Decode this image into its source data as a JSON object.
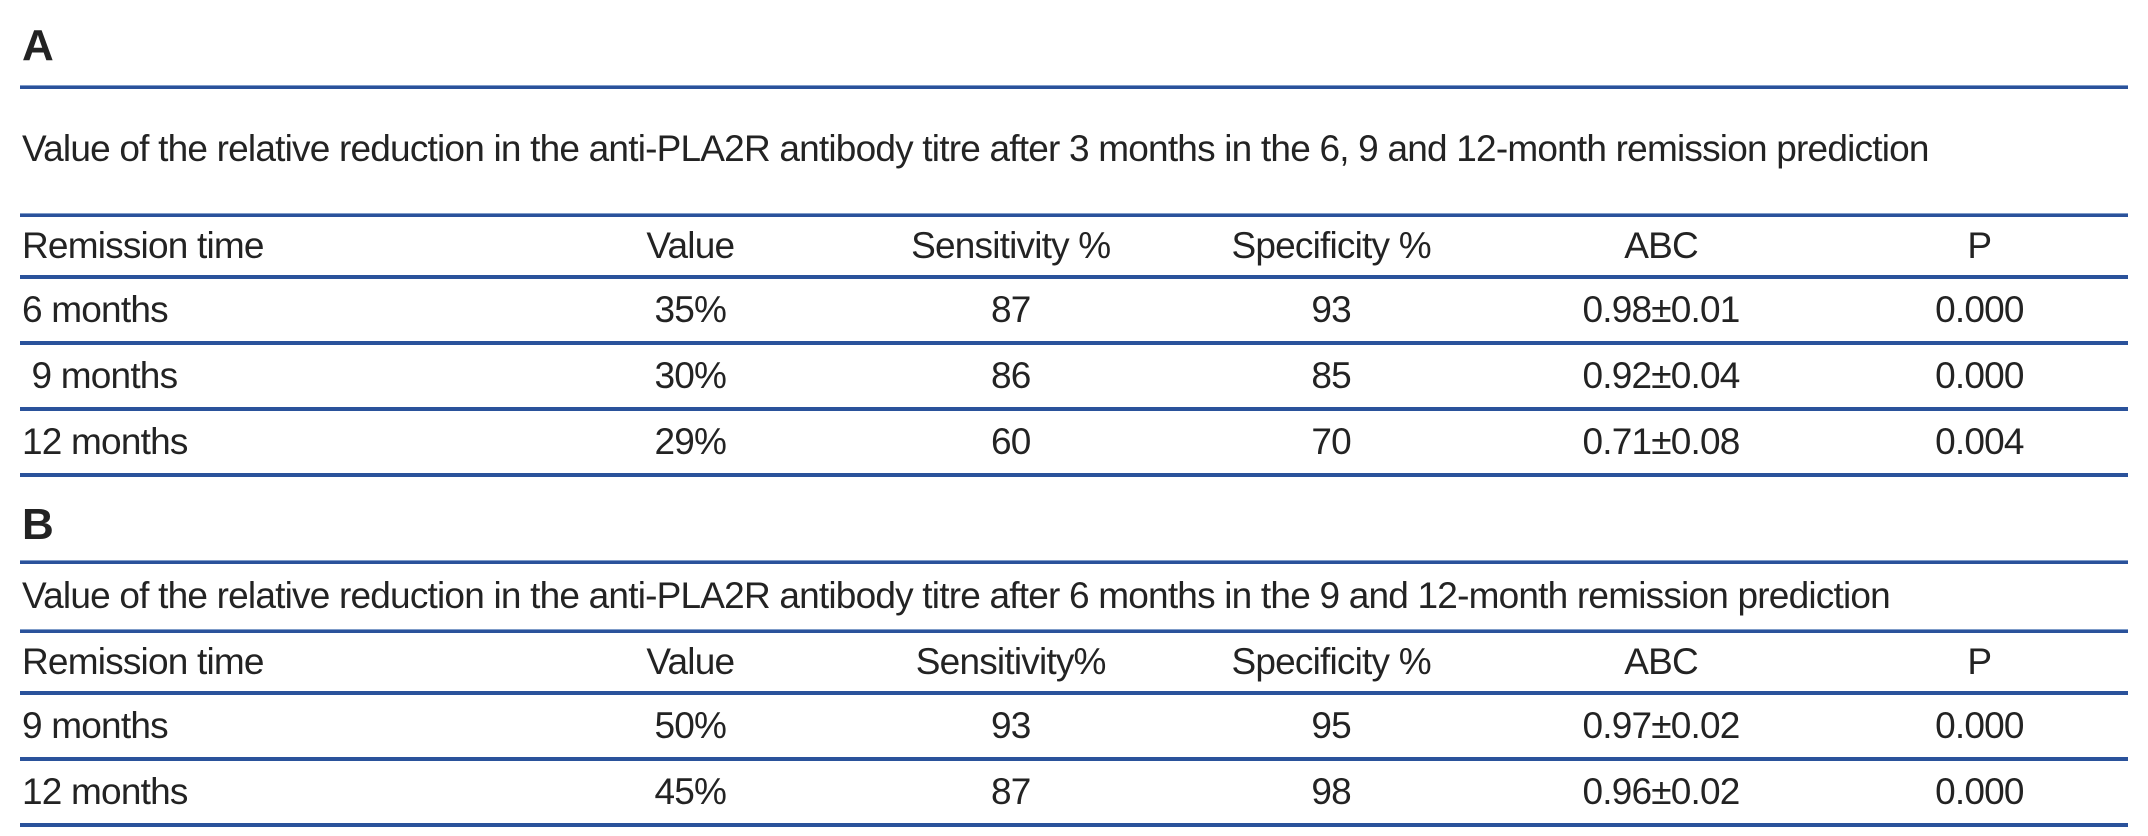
{
  "colors": {
    "rule_line": "#2a529b",
    "text": "#232323",
    "background": "#ffffff"
  },
  "sections": [
    {
      "label": "A",
      "title": "Value of the relative reduction in the anti-PLA2R antibody titre after 3 months in the 6, 9 and 12-month remission prediction",
      "table": {
        "headers": [
          "Remission time",
          "Value",
          "Sensitivity %",
          "Specificity %",
          "ABC",
          "P"
        ],
        "rows": [
          [
            "6 months",
            "35%",
            "87",
            "93",
            "0.98±0.01",
            "0.000"
          ],
          [
            " 9 months",
            "30%",
            "86",
            "85",
            "0.92±0.04",
            "0.000"
          ],
          [
            "12 months",
            "29%",
            "60",
            "70",
            "0.71±0.08",
            "0.004"
          ]
        ]
      }
    },
    {
      "label": "B",
      "title": "Value of the relative reduction in the anti-PLA2R antibody titre after 6 months in the 9 and 12-month remission prediction",
      "table": {
        "headers": [
          "Remission time",
          "Value",
          "Sensitivity%",
          "Specificity %",
          "ABC",
          "P"
        ],
        "rows": [
          [
            "9 months",
            "50%",
            "93",
            "95",
            "0.97±0.02",
            "0.000"
          ],
          [
            "12 months",
            "45%",
            "87",
            "98",
            "0.96±0.02",
            "0.000"
          ]
        ]
      }
    }
  ]
}
